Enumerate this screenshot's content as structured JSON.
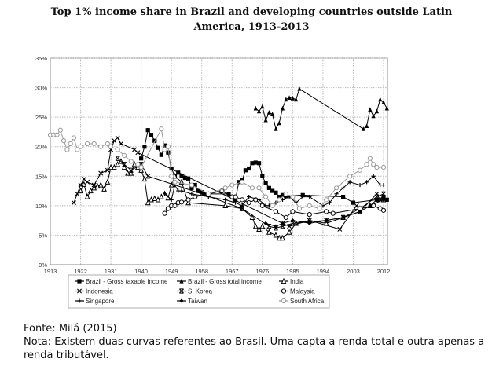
{
  "chart_data": {
    "type": "line",
    "title": "Top 1% income share in Brazil and developing countries outside Latin America, 1913-2013",
    "xlabel": "",
    "ylabel": "",
    "xlim": [
      1913,
      2013
    ],
    "ylim": [
      0,
      35
    ],
    "x_ticks": [
      "1913",
      "1922",
      "1931",
      "1940",
      "1949",
      "1958",
      "1967",
      "1976",
      "1985",
      "1994",
      "2003",
      "2012"
    ],
    "y_ticks": [
      "0%",
      "5%",
      "10%",
      "15%",
      "20%",
      "25%",
      "30%",
      "35%"
    ],
    "grid": true,
    "legend_position": "bottom",
    "series": [
      {
        "name": "Brazil - Gross taxable income",
        "marker": "filled-square",
        "color": "#000000",
        "points": [
          [
            1940,
            18
          ],
          [
            1941,
            20
          ],
          [
            1942,
            22.8
          ],
          [
            1943,
            22
          ],
          [
            1944,
            21
          ],
          [
            1945,
            19.8
          ],
          [
            1946,
            18.6
          ],
          [
            1947,
            20.2
          ],
          [
            1948,
            19
          ],
          [
            1949,
            16.3
          ],
          [
            1950,
            15
          ],
          [
            1951,
            15.6
          ],
          [
            1952,
            15
          ],
          [
            1953,
            14.7
          ],
          [
            1954,
            14.6
          ],
          [
            1955,
            13
          ],
          [
            1956,
            13.5
          ],
          [
            1957,
            12.5
          ],
          [
            1958,
            12.3
          ],
          [
            1959,
            12
          ],
          [
            1966,
            12
          ],
          [
            1968,
            11
          ],
          [
            1969,
            14
          ],
          [
            1970,
            14.3
          ],
          [
            1971,
            16
          ],
          [
            1972,
            16.3
          ],
          [
            1973,
            17.2
          ],
          [
            1974,
            17.3
          ],
          [
            1975,
            17.2
          ],
          [
            1976,
            15
          ],
          [
            1977,
            13.8
          ],
          [
            1978,
            13
          ],
          [
            1979,
            12.5
          ],
          [
            1980,
            12.2
          ],
          [
            1981,
            11.5
          ],
          [
            1982,
            11.8
          ],
          [
            1983,
            11.6
          ],
          [
            1988,
            11.8
          ],
          [
            2000,
            11.5
          ],
          [
            2003,
            10.5
          ],
          [
            2010,
            11
          ],
          [
            2012,
            11.5
          ],
          [
            2013,
            11
          ]
        ]
      },
      {
        "name": "Brazil - Gross total income",
        "marker": "filled-triangle",
        "color": "#000000",
        "points": [
          [
            1974,
            26.5
          ],
          [
            1975,
            26
          ],
          [
            1976,
            26.8
          ],
          [
            1977,
            24.5
          ],
          [
            1978,
            25.8
          ],
          [
            1979,
            25.5
          ],
          [
            1980,
            23
          ],
          [
            1981,
            24
          ],
          [
            1982,
            26.5
          ],
          [
            1983,
            28
          ],
          [
            1984,
            28.3
          ],
          [
            1985,
            28.2
          ],
          [
            1986,
            28
          ],
          [
            1987,
            29.8
          ],
          [
            2006,
            23
          ],
          [
            2007,
            23.5
          ],
          [
            2008,
            26.3
          ],
          [
            2009,
            25.2
          ],
          [
            2010,
            26
          ],
          [
            2011,
            28
          ],
          [
            2012,
            27.5
          ],
          [
            2013,
            26.5
          ]
        ]
      },
      {
        "name": "India",
        "marker": "open-triangle",
        "color": "#000000",
        "points": [
          [
            1922,
            12.5
          ],
          [
            1923,
            13.6
          ],
          [
            1924,
            11.5
          ],
          [
            1925,
            12.5
          ],
          [
            1926,
            13
          ],
          [
            1927,
            13.3
          ],
          [
            1928,
            13.5
          ],
          [
            1929,
            12.8
          ],
          [
            1930,
            14
          ],
          [
            1931,
            16.5
          ],
          [
            1932,
            16.5
          ],
          [
            1933,
            17
          ],
          [
            1934,
            17.5
          ],
          [
            1935,
            16.5
          ],
          [
            1936,
            15.5
          ],
          [
            1937,
            15.5
          ],
          [
            1938,
            17
          ],
          [
            1939,
            16.5
          ],
          [
            1940,
            16
          ],
          [
            1941,
            14.5
          ],
          [
            1942,
            10.5
          ],
          [
            1943,
            11
          ],
          [
            1944,
            11.2
          ],
          [
            1945,
            11
          ],
          [
            1946,
            11.5
          ],
          [
            1947,
            12
          ],
          [
            1948,
            11.3
          ],
          [
            1949,
            13.5
          ],
          [
            1950,
            15
          ],
          [
            1952,
            14
          ],
          [
            1954,
            10.5
          ],
          [
            1965,
            10
          ],
          [
            1970,
            9.5
          ],
          [
            1973,
            8
          ],
          [
            1974,
            6.5
          ],
          [
            1975,
            6
          ],
          [
            1976,
            6.5
          ],
          [
            1978,
            5.5
          ],
          [
            1980,
            5
          ],
          [
            1981,
            4.5
          ],
          [
            1982,
            4.5
          ],
          [
            1984,
            5.5
          ],
          [
            1986,
            7
          ],
          [
            1990,
            7.5
          ],
          [
            1995,
            7
          ],
          [
            2000,
            8
          ],
          [
            2005,
            9
          ],
          [
            2008,
            10
          ],
          [
            2012,
            11
          ]
        ]
      },
      {
        "name": "Indonesia",
        "marker": "x",
        "color": "#000000",
        "points": [
          [
            1920,
            10.5
          ],
          [
            1921,
            12
          ],
          [
            1922,
            13.5
          ],
          [
            1923,
            14.5
          ],
          [
            1924,
            14
          ],
          [
            1926,
            13.5
          ],
          [
            1928,
            15.5
          ],
          [
            1930,
            16
          ],
          [
            1931,
            19.5
          ],
          [
            1932,
            21
          ],
          [
            1933,
            21.5
          ],
          [
            1934,
            20.5
          ],
          [
            1938,
            19.5
          ],
          [
            1939,
            19
          ],
          [
            1982,
            7
          ],
          [
            1984,
            6.5
          ],
          [
            1990,
            7.5
          ],
          [
            1999,
            6
          ],
          [
            2004,
            10
          ],
          [
            2005,
            9
          ],
          [
            2010,
            12
          ],
          [
            2011,
            11
          ]
        ]
      },
      {
        "name": "S. Korea",
        "marker": "asterisk",
        "color": "#000000",
        "points": [
          [
            1933,
            18
          ],
          [
            1935,
            17
          ],
          [
            1937,
            16
          ],
          [
            1940,
            17
          ],
          [
            1942,
            15
          ],
          [
            1958,
            12
          ],
          [
            1970,
            9.5
          ],
          [
            1978,
            6.5
          ],
          [
            1980,
            6.2
          ],
          [
            1982,
            6.5
          ],
          [
            1985,
            7
          ],
          [
            1995,
            7.5
          ],
          [
            2000,
            8
          ],
          [
            2005,
            9.5
          ],
          [
            2010,
            11.5
          ],
          [
            2012,
            12
          ]
        ]
      },
      {
        "name": "Malaysia",
        "marker": "open-circle",
        "color": "#000000",
        "points": [
          [
            1947,
            8.7
          ],
          [
            1948,
            9.5
          ],
          [
            1949,
            10
          ],
          [
            1950,
            10
          ],
          [
            1951,
            10.5
          ],
          [
            1952,
            10.6
          ],
          [
            1954,
            11
          ],
          [
            1956,
            11.5
          ],
          [
            1960,
            12
          ],
          [
            1964,
            12.5
          ],
          [
            1967,
            11.5
          ],
          [
            1968,
            11.5
          ],
          [
            1970,
            11
          ],
          [
            1972,
            10.5
          ],
          [
            1974,
            11
          ],
          [
            1976,
            10
          ],
          [
            1980,
            9
          ],
          [
            1983,
            8
          ],
          [
            1985,
            9
          ],
          [
            1990,
            8.5
          ],
          [
            1995,
            9
          ],
          [
            1997,
            8.7
          ],
          [
            2005,
            9.5
          ],
          [
            2009,
            10
          ],
          [
            2011,
            9.5
          ],
          [
            2012,
            9.2
          ]
        ]
      },
      {
        "name": "Singapore",
        "marker": "plus",
        "color": "#000000",
        "points": [
          [
            1947,
            12
          ],
          [
            1949,
            11
          ],
          [
            1950,
            13.5
          ],
          [
            1951,
            12.5
          ],
          [
            1952,
            12.5
          ],
          [
            1955,
            12
          ],
          [
            1960,
            11.5
          ],
          [
            1965,
            11
          ],
          [
            1968,
            10.5
          ],
          [
            1970,
            10
          ],
          [
            1972,
            11.5
          ],
          [
            1975,
            11
          ],
          [
            1977,
            10
          ],
          [
            1978,
            10
          ],
          [
            1980,
            10.5
          ],
          [
            1982,
            11
          ],
          [
            1984,
            11.5
          ],
          [
            1986,
            10.5
          ],
          [
            1988,
            11.5
          ],
          [
            1990,
            11.5
          ],
          [
            1994,
            10
          ],
          [
            1996,
            10.5
          ],
          [
            1998,
            12
          ],
          [
            2000,
            13
          ],
          [
            2002,
            14
          ],
          [
            2005,
            13.5
          ],
          [
            2007,
            14
          ],
          [
            2009,
            15
          ],
          [
            2011,
            13.5
          ],
          [
            2012,
            13.5
          ]
        ]
      },
      {
        "name": "Taiwan",
        "marker": "filled-diamond",
        "color": "#000000",
        "points": [
          [
            1977,
            7
          ],
          [
            1980,
            6.5
          ],
          [
            1982,
            7
          ],
          [
            1985,
            7.5
          ],
          [
            1990,
            7
          ],
          [
            1995,
            7.5
          ],
          [
            2000,
            8
          ],
          [
            2005,
            9
          ],
          [
            2008,
            10
          ],
          [
            2010,
            11
          ],
          [
            2012,
            11
          ]
        ]
      },
      {
        "name": "South Africa",
        "marker": "open-circle",
        "color": "#999999",
        "points": [
          [
            1913,
            22
          ],
          [
            1914,
            22
          ],
          [
            1915,
            22
          ],
          [
            1916,
            22.8
          ],
          [
            1917,
            21
          ],
          [
            1918,
            19.5
          ],
          [
            1919,
            20.5
          ],
          [
            1920,
            21.5
          ],
          [
            1921,
            19.5
          ],
          [
            1922,
            20
          ],
          [
            1924,
            20.5
          ],
          [
            1926,
            20.5
          ],
          [
            1928,
            20
          ],
          [
            1930,
            20.5
          ],
          [
            1931,
            20
          ],
          [
            1933,
            19.5
          ],
          [
            1935,
            18.5
          ],
          [
            1937,
            17.5
          ],
          [
            1939,
            17
          ],
          [
            1940,
            16.5
          ],
          [
            1946,
            23
          ],
          [
            1947,
            19.5
          ],
          [
            1948,
            20
          ],
          [
            1949,
            15
          ],
          [
            1950,
            14
          ],
          [
            1955,
            13.5
          ],
          [
            1960,
            12
          ],
          [
            1965,
            13
          ],
          [
            1967,
            13.5
          ],
          [
            1970,
            14
          ],
          [
            1973,
            13
          ],
          [
            1975,
            13
          ],
          [
            1977,
            11.5
          ],
          [
            1979,
            10
          ],
          [
            1981,
            11
          ],
          [
            1983,
            12
          ],
          [
            1985,
            11.5
          ],
          [
            1987,
            9.5
          ],
          [
            1990,
            10
          ],
          [
            1993,
            9.5
          ],
          [
            1995,
            11
          ],
          [
            1998,
            13
          ],
          [
            2002,
            15
          ],
          [
            2005,
            16
          ],
          [
            2007,
            17
          ],
          [
            2008,
            18
          ],
          [
            2009,
            17
          ],
          [
            2010,
            16.5
          ],
          [
            2012,
            16.5
          ]
        ]
      }
    ]
  },
  "title_lines": [
    "Top 1% income share in Brazil and developing countries outside Latin",
    "America, 1913-2013"
  ],
  "footer": {
    "source": "Fonte: Milá (2015)",
    "note": "Nota: Existem duas curvas referentes ao Brasil. Uma capta a renda total e outra apenas a renda tributável."
  }
}
